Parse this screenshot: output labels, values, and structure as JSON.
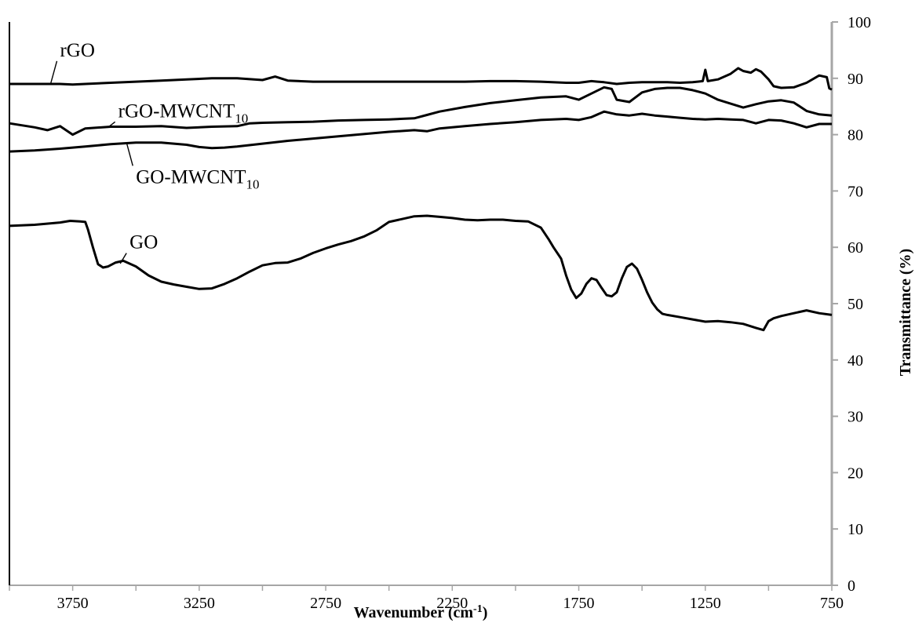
{
  "chart_data": {
    "type": "line",
    "title": "",
    "xlabel": "Wavenumber (cm",
    "xlabel_superscript": "-1",
    "xlabel_suffix": ")",
    "ylabel": "Transmittance (%)",
    "x_reversed": true,
    "xlim": [
      4000,
      750
    ],
    "ylim": [
      0,
      100
    ],
    "grid": false,
    "x_ticks": [
      "3750",
      "3250",
      "2750",
      "2250",
      "1750",
      "1250",
      "750"
    ],
    "x_tick_values": [
      3750,
      3250,
      2750,
      2250,
      1750,
      1250,
      750
    ],
    "y_ticks": [
      "0",
      "10",
      "20",
      "30",
      "40",
      "50",
      "60",
      "70",
      "80",
      "90",
      "100"
    ],
    "y_tick_values": [
      0,
      10,
      20,
      30,
      40,
      50,
      60,
      70,
      80,
      90,
      100
    ],
    "series": [
      {
        "name": "rGO",
        "label_parts": [
          "rGO",
          ""
        ],
        "x": [
          4000,
          3900,
          3800,
          3750,
          3700,
          3600,
          3500,
          3400,
          3300,
          3200,
          3100,
          3000,
          2950,
          2900,
          2800,
          2700,
          2600,
          2500,
          2400,
          2300,
          2200,
          2100,
          2000,
          1900,
          1800,
          1750,
          1700,
          1650,
          1600,
          1550,
          1500,
          1450,
          1400,
          1350,
          1300,
          1260,
          1250,
          1240,
          1200,
          1150,
          1120,
          1100,
          1070,
          1050,
          1030,
          1000,
          980,
          950,
          900,
          850,
          800,
          770,
          760,
          750
        ],
        "y": [
          89,
          89,
          89,
          88.9,
          89,
          89.2,
          89.4,
          89.6,
          89.8,
          90,
          90,
          89.7,
          90.3,
          89.6,
          89.4,
          89.4,
          89.4,
          89.4,
          89.4,
          89.4,
          89.4,
          89.5,
          89.5,
          89.4,
          89.2,
          89.2,
          89.5,
          89.3,
          89,
          89.2,
          89.3,
          89.3,
          89.3,
          89.2,
          89.3,
          89.5,
          91.5,
          89.5,
          89.8,
          90.8,
          91.8,
          91.3,
          91,
          91.6,
          91.2,
          89.8,
          88.6,
          88.3,
          88.4,
          89.2,
          90.5,
          90.2,
          88.2,
          88
        ],
        "label_x": 3800,
        "label_y": 93.9
      },
      {
        "name": "rGO-MWCNT10",
        "label_parts": [
          "rGO-MWCNT",
          "10"
        ],
        "x": [
          4000,
          3900,
          3850,
          3800,
          3750,
          3700,
          3600,
          3500,
          3400,
          3300,
          3200,
          3100,
          3050,
          3000,
          2900,
          2800,
          2700,
          2600,
          2500,
          2400,
          2350,
          2300,
          2200,
          2100,
          2000,
          1900,
          1800,
          1750,
          1700,
          1650,
          1620,
          1600,
          1550,
          1500,
          1450,
          1400,
          1350,
          1300,
          1250,
          1200,
          1100,
          1050,
          1000,
          950,
          900,
          850,
          800,
          750
        ],
        "y": [
          82,
          81.3,
          80.8,
          81.5,
          80,
          81.1,
          81.4,
          81.4,
          81.5,
          81.2,
          81.4,
          81.5,
          82,
          82.1,
          82.2,
          82.3,
          82.5,
          82.6,
          82.7,
          82.9,
          83.5,
          84.1,
          84.9,
          85.6,
          86.1,
          86.6,
          86.8,
          86.2,
          87.3,
          88.4,
          88.1,
          86.2,
          85.8,
          87.5,
          88.1,
          88.3,
          88.3,
          87.9,
          87.3,
          86.2,
          84.8,
          85.4,
          85.9,
          86.1,
          85.7,
          84.2,
          83.6,
          83.4
        ],
        "label_x": 3570,
        "label_y": 83.1
      },
      {
        "name": "GO-MWCNT10",
        "label_parts": [
          "GO-MWCNT",
          "10"
        ],
        "x": [
          4000,
          3900,
          3800,
          3700,
          3600,
          3500,
          3400,
          3300,
          3250,
          3200,
          3150,
          3100,
          3000,
          2900,
          2800,
          2700,
          2600,
          2500,
          2400,
          2350,
          2300,
          2200,
          2100,
          2000,
          1900,
          1800,
          1750,
          1700,
          1650,
          1600,
          1550,
          1500,
          1450,
          1400,
          1350,
          1300,
          1250,
          1200,
          1150,
          1100,
          1050,
          1000,
          950,
          900,
          850,
          800,
          750
        ],
        "y": [
          77,
          77.2,
          77.5,
          77.9,
          78.3,
          78.6,
          78.6,
          78.2,
          77.8,
          77.6,
          77.7,
          77.9,
          78.4,
          78.9,
          79.3,
          79.7,
          80.1,
          80.5,
          80.8,
          80.6,
          81.1,
          81.5,
          81.9,
          82.2,
          82.6,
          82.8,
          82.6,
          83.1,
          84.1,
          83.6,
          83.4,
          83.7,
          83.4,
          83.2,
          83,
          82.8,
          82.7,
          82.8,
          82.7,
          82.6,
          82,
          82.6,
          82.5,
          82,
          81.3,
          81.9,
          81.9
        ],
        "label_x": 3500,
        "label_y": 71.4
      },
      {
        "name": "GO",
        "label_parts": [
          "GO",
          ""
        ],
        "x": [
          4000,
          3900,
          3800,
          3760,
          3720,
          3700,
          3690,
          3670,
          3650,
          3630,
          3610,
          3580,
          3550,
          3500,
          3450,
          3400,
          3350,
          3300,
          3250,
          3200,
          3150,
          3100,
          3050,
          3000,
          2950,
          2900,
          2850,
          2800,
          2750,
          2700,
          2650,
          2600,
          2550,
          2500,
          2450,
          2400,
          2350,
          2300,
          2250,
          2200,
          2150,
          2100,
          2050,
          2000,
          1950,
          1900,
          1870,
          1850,
          1820,
          1800,
          1780,
          1760,
          1740,
          1720,
          1700,
          1680,
          1660,
          1640,
          1620,
          1600,
          1580,
          1560,
          1540,
          1520,
          1500,
          1480,
          1460,
          1440,
          1420,
          1400,
          1350,
          1300,
          1250,
          1200,
          1150,
          1100,
          1050,
          1020,
          1000,
          980,
          950,
          900,
          850,
          800,
          750
        ],
        "y": [
          63.8,
          64,
          64.4,
          64.7,
          64.6,
          64.5,
          63.2,
          60,
          57,
          56.4,
          56.6,
          57.3,
          57.6,
          56.6,
          55,
          53.9,
          53.4,
          53,
          52.6,
          52.7,
          53.5,
          54.5,
          55.7,
          56.8,
          57.2,
          57.3,
          58,
          59,
          59.8,
          60.5,
          61.1,
          61.9,
          63,
          64.5,
          65,
          65.5,
          65.6,
          65.4,
          65.2,
          64.9,
          64.8,
          64.9,
          64.9,
          64.7,
          64.6,
          63.5,
          61.5,
          60,
          58,
          55,
          52.5,
          51,
          51.8,
          53.5,
          54.5,
          54.2,
          52.8,
          51.5,
          51.3,
          52,
          54.5,
          56.5,
          57.1,
          56.2,
          54.2,
          52,
          50.2,
          49,
          48.2,
          48,
          47.6,
          47.2,
          46.8,
          46.9,
          46.7,
          46.4,
          45.7,
          45.3,
          46.9,
          47.4,
          47.8,
          48.3,
          48.8,
          48.3,
          48
        ],
        "label_x": 3525,
        "label_y": 59.8
      }
    ]
  }
}
